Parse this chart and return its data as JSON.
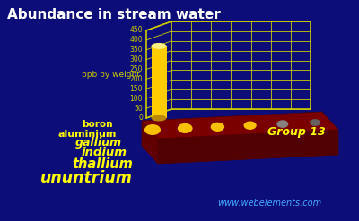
{
  "title": "Abundance in stream water",
  "title_color": "#ffffff",
  "title_fontsize": 11,
  "background_color": "#0d0d7a",
  "elements": [
    "boron",
    "aluminium",
    "gallium",
    "indium",
    "thallium",
    "ununtrium"
  ],
  "values": [
    370,
    10,
    0.09,
    0.001,
    0.02,
    0
  ],
  "ylabel": "ppb by weight",
  "ylim": [
    0,
    450
  ],
  "yticks": [
    0,
    50,
    100,
    150,
    200,
    250,
    300,
    350,
    400,
    450
  ],
  "group_label": "Group 13",
  "website": "www.webelements.com",
  "bar_color_top": "#ffee80",
  "bar_color_mid": "#ffcc00",
  "bar_color_shade": "#cc9900",
  "dot_colors": [
    "#ffcc00",
    "#ffcc00",
    "#ffcc00",
    "#ffcc00",
    "#888888",
    "#666666"
  ],
  "grid_color": "#cccc00",
  "axis_color": "#cccc00",
  "label_color": "#ffff00",
  "text_color": "#44aaff",
  "base_color": "#7a0000",
  "base_edge_color": "#550000"
}
